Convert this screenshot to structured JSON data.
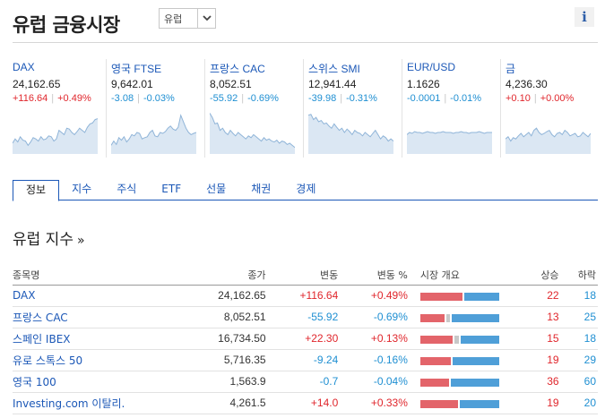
{
  "header": {
    "title": "유럽 금융시장",
    "region_value": "유럽",
    "info_label": "i"
  },
  "colors": {
    "up": "#e0262c",
    "down": "#1f8fd2",
    "link": "#1c58b7",
    "bar_up": "#e3646a",
    "bar_down": "#4f9fd8",
    "bar_flat": "#c8c8c8"
  },
  "tickers": [
    {
      "name": "DAX",
      "price": "24,162.65",
      "change": "+116.64",
      "pct": "+0.49%",
      "dir": "up",
      "spark": [
        0.25,
        0.35,
        0.28,
        0.4,
        0.32,
        0.3,
        0.2,
        0.28,
        0.38,
        0.35,
        0.3,
        0.4,
        0.33,
        0.35,
        0.42,
        0.4,
        0.3,
        0.35,
        0.55,
        0.5,
        0.45,
        0.6,
        0.58,
        0.5,
        0.45,
        0.52,
        0.6,
        0.55,
        0.5,
        0.62,
        0.7,
        0.72,
        0.8,
        0.82
      ]
    },
    {
      "name": "영국 FTSE",
      "price": "9,642.01",
      "change": "-3.08",
      "pct": "-0.03%",
      "dir": "down",
      "spark": [
        0.2,
        0.3,
        0.22,
        0.38,
        0.32,
        0.4,
        0.28,
        0.35,
        0.45,
        0.42,
        0.5,
        0.48,
        0.35,
        0.38,
        0.4,
        0.5,
        0.55,
        0.42,
        0.4,
        0.5,
        0.48,
        0.52,
        0.6,
        0.65,
        0.58,
        0.55,
        0.62,
        0.9,
        0.75,
        0.6,
        0.5,
        0.45,
        0.48,
        0.5
      ]
    },
    {
      "name": "프랑스 CAC",
      "price": "8,052.51",
      "change": "-55.92",
      "pct": "-0.69%",
      "dir": "down",
      "spark": [
        0.95,
        0.85,
        0.7,
        0.72,
        0.55,
        0.6,
        0.5,
        0.45,
        0.55,
        0.48,
        0.42,
        0.5,
        0.45,
        0.4,
        0.35,
        0.42,
        0.38,
        0.45,
        0.4,
        0.35,
        0.3,
        0.38,
        0.32,
        0.35,
        0.3,
        0.28,
        0.32,
        0.25,
        0.3,
        0.28,
        0.22,
        0.25,
        0.2,
        0.15
      ]
    },
    {
      "name": "스위스 SMI",
      "price": "12,941.44",
      "change": "-39.98",
      "pct": "-0.31%",
      "dir": "down",
      "spark": [
        0.9,
        0.92,
        0.8,
        0.85,
        0.75,
        0.78,
        0.7,
        0.72,
        0.65,
        0.6,
        0.7,
        0.62,
        0.55,
        0.6,
        0.5,
        0.58,
        0.52,
        0.45,
        0.55,
        0.5,
        0.48,
        0.42,
        0.5,
        0.45,
        0.4,
        0.48,
        0.55,
        0.45,
        0.35,
        0.42,
        0.38,
        0.3,
        0.35,
        0.3
      ]
    },
    {
      "name": "EUR/USD",
      "price": "1.1626",
      "change": "-0.0001",
      "pct": "-0.01%",
      "dir": "down",
      "spark": [
        0.45,
        0.5,
        0.48,
        0.52,
        0.5,
        0.5,
        0.48,
        0.5,
        0.52,
        0.5,
        0.5,
        0.48,
        0.5,
        0.5,
        0.52,
        0.5,
        0.5,
        0.5,
        0.48,
        0.5,
        0.5,
        0.52,
        0.5,
        0.5,
        0.48,
        0.5,
        0.5,
        0.5,
        0.52,
        0.5,
        0.48,
        0.5,
        0.5,
        0.5
      ]
    },
    {
      "name": "금",
      "price": "4,236.30",
      "change": "+0.10",
      "pct": "+0.00%",
      "dir": "up",
      "spark": [
        0.35,
        0.4,
        0.3,
        0.38,
        0.35,
        0.42,
        0.48,
        0.4,
        0.45,
        0.5,
        0.42,
        0.55,
        0.6,
        0.5,
        0.45,
        0.48,
        0.52,
        0.55,
        0.45,
        0.4,
        0.48,
        0.5,
        0.45,
        0.55,
        0.5,
        0.42,
        0.45,
        0.48,
        0.4,
        0.42,
        0.5,
        0.45,
        0.4,
        0.48
      ]
    }
  ],
  "tabs": [
    "정보",
    "지수",
    "주식",
    "ETF",
    "선물",
    "채권",
    "경제"
  ],
  "section": {
    "title": "유럽 지수",
    "arrow": "»"
  },
  "table": {
    "headers": {
      "name": "종목명",
      "last": "종가",
      "chg": "변동",
      "pct": "변동 %",
      "overview": "시장 개요",
      "adv": "상승",
      "dec": "하락"
    },
    "rows": [
      {
        "name": "DAX",
        "last": "24,162.65",
        "chg": "+116.64",
        "pct": "+0.49%",
        "dir": "up",
        "adv": "22",
        "dec": "18",
        "flat": "0"
      },
      {
        "name": "프랑스 CAC",
        "last": "8,052.51",
        "chg": "-55.92",
        "pct": "-0.69%",
        "dir": "down",
        "adv": "13",
        "dec": "25",
        "flat": "2"
      },
      {
        "name": "스페인 IBEX",
        "last": "16,734.50",
        "chg": "+22.30",
        "pct": "+0.13%",
        "dir": "up",
        "adv": "15",
        "dec": "18",
        "flat": "2"
      },
      {
        "name": "유로 스톡스 50",
        "last": "5,716.35",
        "chg": "-9.24",
        "pct": "-0.16%",
        "dir": "down",
        "adv": "19",
        "dec": "29",
        "flat": "0"
      },
      {
        "name": "영국 100",
        "last": "1,563.9",
        "chg": "-0.7",
        "pct": "-0.04%",
        "dir": "down",
        "adv": "36",
        "dec": "60",
        "flat": "0"
      },
      {
        "name": "Investing.com 이탈리.",
        "last": "4,261.5",
        "chg": "+14.0",
        "pct": "+0.33%",
        "dir": "up",
        "adv": "19",
        "dec": "20",
        "flat": "0"
      }
    ]
  }
}
